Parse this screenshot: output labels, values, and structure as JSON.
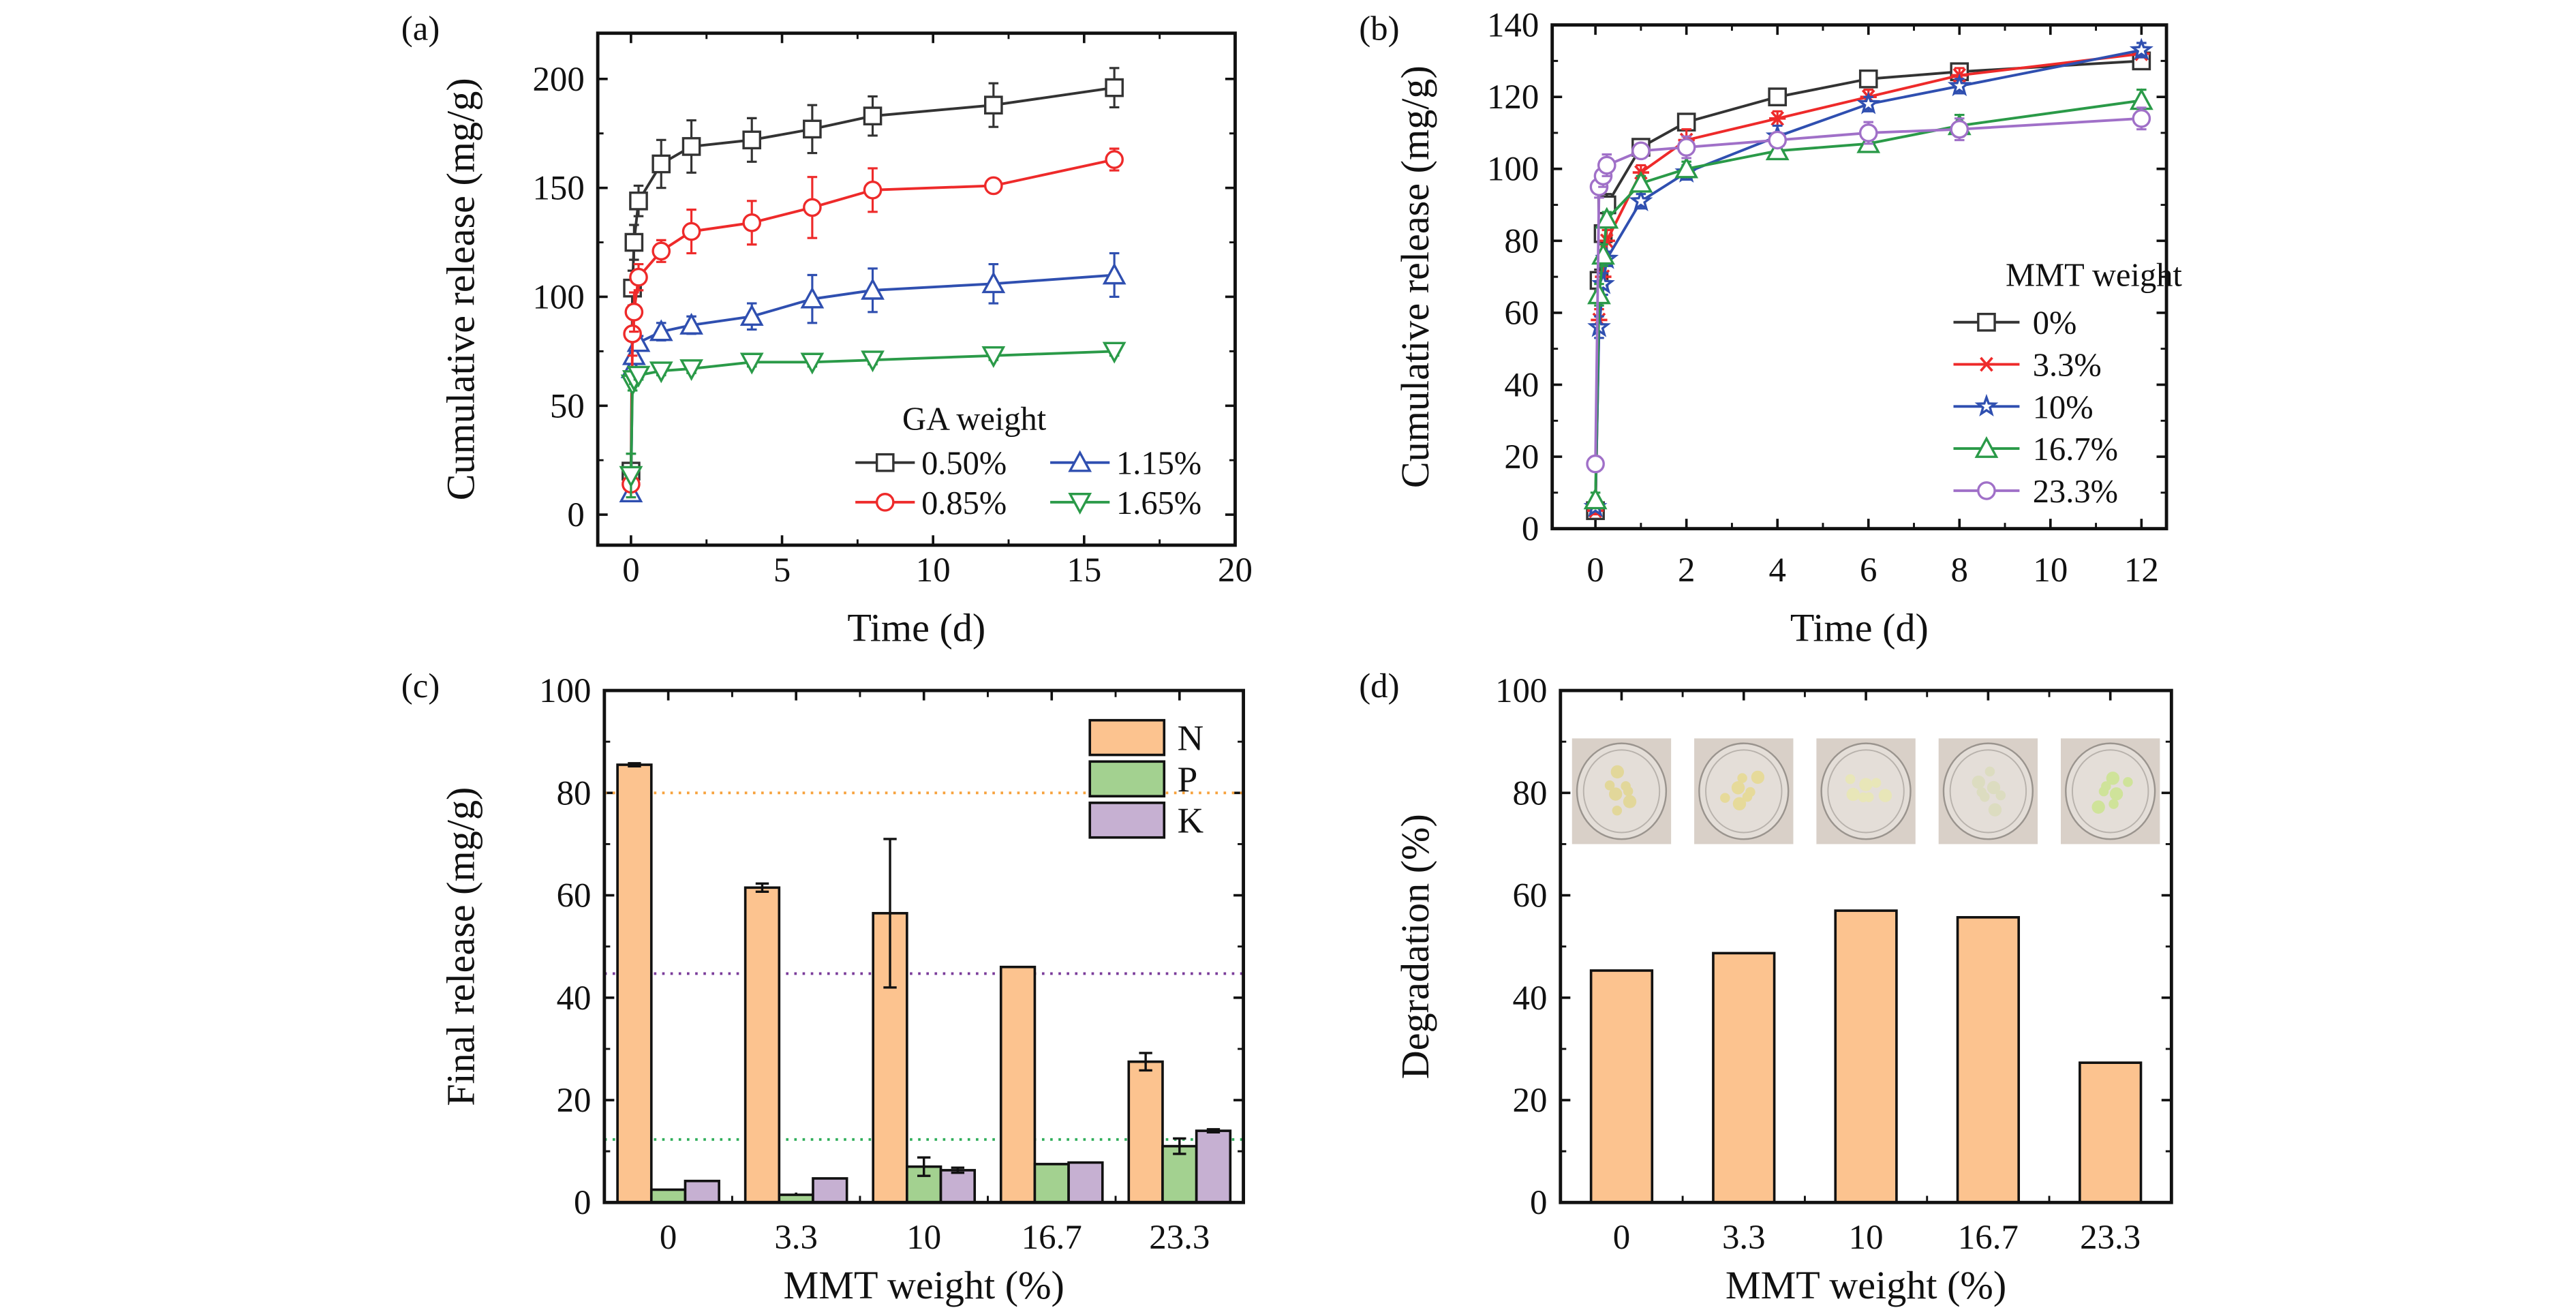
{
  "chart_data": [
    {
      "panel_label": "(a)",
      "type": "line",
      "xlabel": "Time (d)",
      "ylabel": "Cumulative release (mg/g)",
      "xlim": [
        -1.1,
        20
      ],
      "ylim": [
        -14,
        221
      ],
      "xticks": [
        "0",
        "5",
        "10",
        "15",
        "20"
      ],
      "yticks": [
        "0",
        "50",
        "100",
        "150",
        "200"
      ],
      "legend_title": "GA weight",
      "legend_placement": "bottom-right",
      "x": [
        0,
        0.05,
        0.1,
        0.25,
        1,
        2,
        4,
        6,
        8,
        12,
        16
      ],
      "series": [
        {
          "name": "0.50%",
          "color": "#333333",
          "marker": "square",
          "values": [
            20,
            104,
            125,
            144,
            161,
            169,
            172,
            177,
            183,
            188,
            196
          ],
          "errors": [
            8,
            8,
            8,
            7,
            11,
            12,
            10,
            11,
            9,
            10,
            9
          ]
        },
        {
          "name": "1.15%",
          "color": "#2f4fb0",
          "marker": "triangle-up",
          "values": [
            10,
            67,
            73,
            79,
            84,
            87,
            91,
            99,
            103,
            106,
            110
          ],
          "errors": [
            3,
            3,
            3,
            3,
            4,
            4,
            6,
            11,
            10,
            9,
            10
          ]
        },
        {
          "name": "0.85%",
          "color": "#ee2a2a",
          "marker": "circle",
          "values": [
            14,
            83,
            93,
            109,
            121,
            130,
            134,
            141,
            149,
            151,
            163
          ],
          "errors": [
            6,
            10,
            9,
            6,
            5,
            10,
            10,
            14,
            10,
            2,
            5
          ]
        },
        {
          "name": "1.65%",
          "color": "#2a9a48",
          "marker": "triangle-down",
          "values": [
            18,
            60,
            62,
            64,
            66,
            67,
            70,
            70,
            71,
            73,
            75
          ],
          "errors": [
            10,
            3,
            2,
            2,
            2,
            2,
            2,
            2,
            2,
            2,
            2
          ]
        }
      ]
    },
    {
      "panel_label": "(b)",
      "type": "line",
      "xlabel": "Time (d)",
      "ylabel": "Cumulative release (mg/g)",
      "xlim": [
        -0.95,
        12.55
      ],
      "ylim": [
        0,
        140
      ],
      "xticks": [
        "0",
        "2",
        "4",
        "6",
        "8",
        "10",
        "12"
      ],
      "yticks": [
        "0",
        "20",
        "40",
        "60",
        "80",
        "100",
        "120",
        "140"
      ],
      "legend_title": "MMT weight",
      "legend_placement": "right",
      "x": [
        0,
        0.08,
        0.17,
        0.25,
        1,
        2,
        4,
        6,
        8,
        12
      ],
      "series": [
        {
          "name": "0%",
          "color": "#333333",
          "marker": "square",
          "values": [
            5,
            69,
            82,
            90,
            106,
            113,
            120,
            125,
            127,
            130
          ],
          "errors": [
            1,
            3,
            3,
            3,
            2,
            2,
            1,
            1,
            1,
            1
          ]
        },
        {
          "name": "3.3%",
          "color": "#ee2a2a",
          "marker": "asterisk",
          "values": [
            5,
            58,
            70,
            80,
            99,
            108,
            114,
            120,
            126,
            132
          ],
          "errors": [
            1,
            3,
            3,
            3,
            2,
            3,
            2,
            2,
            2,
            1
          ]
        },
        {
          "name": "10%",
          "color": "#2f4fb0",
          "marker": "star",
          "values": [
            6,
            56,
            68,
            75,
            91,
            99,
            109,
            118,
            123,
            133
          ],
          "errors": [
            1,
            3,
            3,
            2,
            2,
            2,
            3,
            2,
            2,
            2
          ]
        },
        {
          "name": "16.7%",
          "color": "#2a9a48",
          "marker": "triangle-up",
          "values": [
            8,
            65,
            76,
            86,
            96,
            100,
            105,
            107,
            112,
            119
          ],
          "errors": [
            2,
            3,
            3,
            2,
            2,
            2,
            2,
            2,
            3,
            3
          ]
        },
        {
          "name": "23.3%",
          "color": "#a070c8",
          "marker": "circle",
          "values": [
            18,
            95,
            98,
            101,
            105,
            106,
            108,
            110,
            111,
            114
          ],
          "errors": [
            2,
            3,
            3,
            3,
            2,
            3,
            2,
            3,
            3,
            3
          ]
        }
      ]
    },
    {
      "panel_label": "(c)",
      "type": "bar",
      "xlabel": "MMT weight (%)",
      "ylabel": "Final release (mg/g)",
      "ylim": [
        0,
        100
      ],
      "yticks": [
        "0",
        "20",
        "40",
        "60",
        "80",
        "100"
      ],
      "categories": [
        "0",
        "3.3",
        "10",
        "16.7",
        "23.3"
      ],
      "legend_placement": "top-right",
      "series": [
        {
          "name": "N",
          "color": "#fcc38f",
          "values": [
            85.5,
            61.5,
            56.5,
            46,
            27.5
          ],
          "errors": [
            0.3,
            0.8,
            14.5,
            0,
            1.7
          ]
        },
        {
          "name": "P",
          "color": "#a3d190",
          "values": [
            2.5,
            1.5,
            7,
            7.5,
            11
          ],
          "errors": [
            0,
            0,
            1.8,
            0,
            1.5
          ]
        },
        {
          "name": "K",
          "color": "#c6b0d2",
          "values": [
            4.2,
            4.7,
            6.3,
            7.8,
            14
          ],
          "errors": [
            0,
            0,
            0.5,
            0,
            0.3
          ]
        }
      ],
      "reference_lines": [
        {
          "value": 80,
          "color": "#f7a23c"
        },
        {
          "value": 44.7,
          "color": "#7a3b9a"
        },
        {
          "value": 12.3,
          "color": "#2fae5a"
        }
      ]
    },
    {
      "panel_label": "(d)",
      "type": "bar",
      "xlabel": "MMT weight (%)",
      "ylabel": "Degradation (%)",
      "ylim": [
        0,
        100
      ],
      "yticks": [
        "0",
        "20",
        "40",
        "60",
        "80",
        "100"
      ],
      "categories": [
        "0",
        "3.3",
        "10",
        "16.7",
        "23.3"
      ],
      "series": [
        {
          "color": "#fcc38f",
          "values": [
            45.3,
            48.7,
            57,
            55.7,
            27.3
          ]
        }
      ]
    }
  ]
}
